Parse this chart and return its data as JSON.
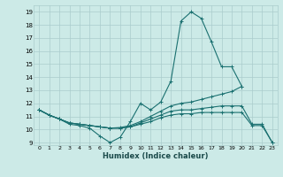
{
  "xlabel": "Humidex (Indice chaleur)",
  "bg_color": "#cceae7",
  "grid_color": "#aacccc",
  "line_color": "#1a7070",
  "xlim": [
    -0.5,
    23.5
  ],
  "ylim": [
    8.8,
    19.5
  ],
  "xticks": [
    0,
    1,
    2,
    3,
    4,
    5,
    6,
    7,
    8,
    9,
    10,
    11,
    12,
    13,
    14,
    15,
    16,
    17,
    18,
    19,
    20,
    21,
    22,
    23
  ],
  "yticks": [
    9,
    10,
    11,
    12,
    13,
    14,
    15,
    16,
    17,
    18,
    19
  ],
  "lines": [
    {
      "x": [
        0,
        1,
        2,
        3,
        4,
        5,
        6,
        7,
        8,
        9,
        10,
        11,
        12,
        13,
        14,
        15,
        16,
        17,
        18,
        19,
        20
      ],
      "y": [
        11.5,
        11.1,
        10.8,
        10.4,
        10.3,
        10.1,
        9.5,
        9.0,
        9.4,
        10.6,
        12.0,
        11.5,
        12.1,
        13.7,
        18.3,
        19.0,
        18.5,
        16.7,
        14.8,
        14.8,
        13.3
      ]
    },
    {
      "x": [
        0,
        1,
        2,
        3,
        4,
        5,
        6,
        7,
        8,
        9,
        10,
        11,
        12,
        13,
        14,
        15,
        16,
        17,
        18,
        19,
        20
      ],
      "y": [
        11.5,
        11.1,
        10.8,
        10.5,
        10.4,
        10.3,
        10.2,
        10.1,
        10.15,
        10.3,
        10.6,
        11.0,
        11.4,
        11.8,
        12.0,
        12.1,
        12.3,
        12.5,
        12.7,
        12.9,
        13.3
      ]
    },
    {
      "x": [
        0,
        1,
        2,
        3,
        4,
        5,
        6,
        7,
        8,
        9,
        10,
        11,
        12,
        13,
        14,
        15,
        16,
        17,
        18,
        19,
        20,
        21,
        22,
        23
      ],
      "y": [
        11.5,
        11.1,
        10.8,
        10.5,
        10.4,
        10.3,
        10.2,
        10.1,
        10.1,
        10.2,
        10.5,
        10.8,
        11.1,
        11.4,
        11.5,
        11.5,
        11.6,
        11.7,
        11.8,
        11.8,
        11.8,
        10.4,
        10.4,
        9.0
      ]
    },
    {
      "x": [
        0,
        1,
        2,
        3,
        4,
        5,
        6,
        7,
        8,
        9,
        10,
        11,
        12,
        13,
        14,
        15,
        16,
        17,
        18,
        19,
        20,
        21,
        22,
        23
      ],
      "y": [
        11.5,
        11.1,
        10.8,
        10.5,
        10.4,
        10.3,
        10.2,
        10.1,
        10.1,
        10.2,
        10.4,
        10.6,
        10.9,
        11.1,
        11.2,
        11.2,
        11.3,
        11.3,
        11.3,
        11.3,
        11.3,
        10.3,
        10.3,
        9.0
      ]
    }
  ]
}
